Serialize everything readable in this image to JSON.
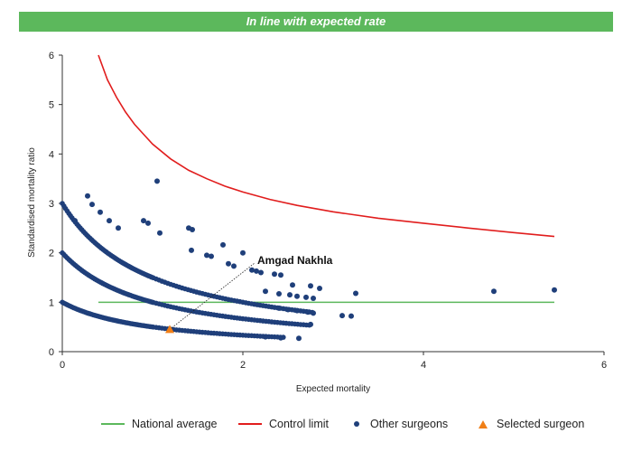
{
  "banner": {
    "text": "In line with expected rate",
    "color": "#5cb85c"
  },
  "chart_data": {
    "type": "scatter",
    "xlabel": "Expected mortality",
    "ylabel": "Standardised mortality ratio",
    "xlim": [
      0,
      6
    ],
    "ylim": [
      0,
      6
    ],
    "x_ticks": [
      "0",
      "2",
      "4",
      "6"
    ],
    "y_ticks": [
      "0",
      "1",
      "2",
      "3",
      "4",
      "5",
      "6"
    ],
    "grid": false,
    "legend_position": "bottom",
    "colors": {
      "national": "#5cb85c",
      "control": "#e11d1d",
      "others": "#1f3f7a",
      "selected": "#f07f17"
    },
    "national_average": {
      "name": "National average",
      "y": 1,
      "x_range": [
        0.4,
        5.45
      ]
    },
    "control_limit": {
      "name": "Control limit",
      "points": [
        [
          0.4,
          6.0
        ],
        [
          0.5,
          5.5
        ],
        [
          0.6,
          5.15
        ],
        [
          0.7,
          4.85
        ],
        [
          0.8,
          4.6
        ],
        [
          0.9,
          4.4
        ],
        [
          1.0,
          4.2
        ],
        [
          1.2,
          3.9
        ],
        [
          1.4,
          3.67
        ],
        [
          1.6,
          3.5
        ],
        [
          1.8,
          3.35
        ],
        [
          2.0,
          3.23
        ],
        [
          2.3,
          3.08
        ],
        [
          2.6,
          2.96
        ],
        [
          3.0,
          2.83
        ],
        [
          3.5,
          2.7
        ],
        [
          4.0,
          2.6
        ],
        [
          4.5,
          2.5
        ],
        [
          5.0,
          2.41
        ],
        [
          5.45,
          2.33
        ]
      ]
    },
    "other_surgeons": {
      "name": "Other surgeons",
      "curves_k": [
        1,
        2,
        3
      ],
      "curve_x_max": [
        2.45,
        2.75,
        2.8
      ],
      "scattered": [
        [
          0.28,
          3.15
        ],
        [
          0.33,
          2.98
        ],
        [
          0.14,
          2.65
        ],
        [
          0.42,
          2.82
        ],
        [
          0.52,
          2.65
        ],
        [
          0.62,
          2.5
        ],
        [
          0.9,
          2.65
        ],
        [
          0.95,
          2.6
        ],
        [
          1.08,
          2.4
        ],
        [
          1.05,
          3.45
        ],
        [
          1.4,
          2.5
        ],
        [
          1.44,
          2.47
        ],
        [
          1.43,
          2.05
        ],
        [
          1.6,
          1.95
        ],
        [
          1.65,
          1.93
        ],
        [
          1.78,
          2.16
        ],
        [
          1.84,
          1.78
        ],
        [
          1.9,
          1.73
        ],
        [
          2.0,
          2.0
        ],
        [
          2.1,
          1.65
        ],
        [
          2.15,
          1.63
        ],
        [
          2.2,
          1.6
        ],
        [
          2.35,
          1.57
        ],
        [
          2.42,
          1.55
        ],
        [
          2.55,
          1.35
        ],
        [
          2.75,
          1.33
        ],
        [
          2.85,
          1.28
        ],
        [
          2.25,
          1.22
        ],
        [
          2.4,
          1.17
        ],
        [
          2.52,
          1.15
        ],
        [
          2.6,
          1.12
        ],
        [
          2.7,
          1.1
        ],
        [
          2.78,
          1.08
        ],
        [
          3.25,
          1.18
        ],
        [
          2.4,
          0.88
        ],
        [
          2.5,
          0.85
        ],
        [
          2.6,
          0.83
        ],
        [
          2.72,
          0.8
        ],
        [
          2.78,
          0.78
        ],
        [
          3.1,
          0.73
        ],
        [
          3.2,
          0.72
        ],
        [
          2.75,
          0.55
        ],
        [
          2.25,
          0.3
        ],
        [
          2.42,
          0.28
        ],
        [
          2.62,
          0.27
        ],
        [
          4.78,
          1.22
        ],
        [
          5.45,
          1.25
        ]
      ]
    },
    "selected_surgeon": {
      "name": "Selected surgeon",
      "label": "Amgad Nakhla",
      "x": 1.19,
      "y": 0.45
    }
  }
}
